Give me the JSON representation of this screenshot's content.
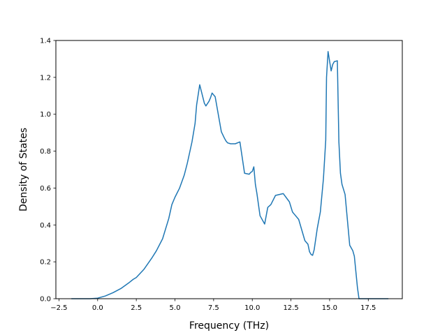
{
  "chart_data": {
    "type": "line",
    "title": "",
    "xlabel": "Frequency (THz)",
    "ylabel": "Density of States",
    "xlim": [
      -2.7,
      19.7
    ],
    "ylim": [
      0,
      1.4
    ],
    "grid": false,
    "x_ticks": [
      -2.5,
      0.0,
      2.5,
      5.0,
      7.5,
      10.0,
      12.5,
      15.0,
      17.5
    ],
    "x_tick_labels": [
      "−2.5",
      "0.0",
      "2.5",
      "5.0",
      "7.5",
      "10.0",
      "12.5",
      "15.0",
      "17.5"
    ],
    "y_ticks": [
      0.0,
      0.2,
      0.4,
      0.6,
      0.8,
      1.0,
      1.2,
      1.4
    ],
    "y_tick_labels": [
      "0.0",
      "0.2",
      "0.4",
      "0.6",
      "0.8",
      "1.0",
      "1.2",
      "1.4"
    ],
    "series": [
      {
        "color": "#1f77b4",
        "x": [
          -1.7,
          -0.5,
          0.0,
          0.5,
          1.0,
          1.5,
          2.0,
          2.3,
          2.5,
          3.0,
          3.5,
          3.8,
          4.2,
          4.6,
          4.8,
          5.0,
          5.3,
          5.6,
          5.8,
          6.1,
          6.3,
          6.4,
          6.6,
          6.9,
          7.0,
          7.2,
          7.3,
          7.4,
          7.6,
          8.0,
          8.2,
          8.3,
          8.4,
          8.6,
          8.9,
          9.2,
          9.5,
          9.8,
          9.9,
          10.0,
          10.1,
          10.2,
          10.3,
          10.5,
          10.8,
          11.0,
          11.2,
          11.5,
          12.0,
          12.4,
          12.6,
          12.7,
          13.0,
          13.4,
          13.6,
          13.7,
          13.8,
          13.9,
          14.0,
          14.2,
          14.4,
          14.6,
          14.75,
          14.8,
          14.9,
          15.1,
          15.2,
          15.3,
          15.5,
          15.6,
          15.7,
          15.8,
          16.0,
          16.3,
          16.5,
          16.6,
          16.8,
          16.9,
          17.0,
          17.5,
          18.8
        ],
        "y": [
          0.0,
          0.0,
          0.003,
          0.015,
          0.033,
          0.055,
          0.085,
          0.105,
          0.115,
          0.16,
          0.22,
          0.26,
          0.325,
          0.435,
          0.51,
          0.55,
          0.6,
          0.67,
          0.735,
          0.85,
          0.95,
          1.05,
          1.16,
          1.06,
          1.045,
          1.07,
          1.09,
          1.115,
          1.095,
          0.905,
          0.87,
          0.855,
          0.845,
          0.84,
          0.84,
          0.85,
          0.68,
          0.675,
          0.685,
          0.69,
          0.715,
          0.62,
          0.57,
          0.45,
          0.405,
          0.495,
          0.51,
          0.56,
          0.57,
          0.525,
          0.47,
          0.46,
          0.43,
          0.315,
          0.295,
          0.255,
          0.24,
          0.235,
          0.265,
          0.38,
          0.47,
          0.65,
          0.86,
          1.2,
          1.34,
          1.235,
          1.27,
          1.285,
          1.29,
          0.85,
          0.68,
          0.62,
          0.565,
          0.29,
          0.26,
          0.23,
          0.06,
          0.0,
          0.0,
          0.0,
          0.0
        ]
      }
    ]
  }
}
